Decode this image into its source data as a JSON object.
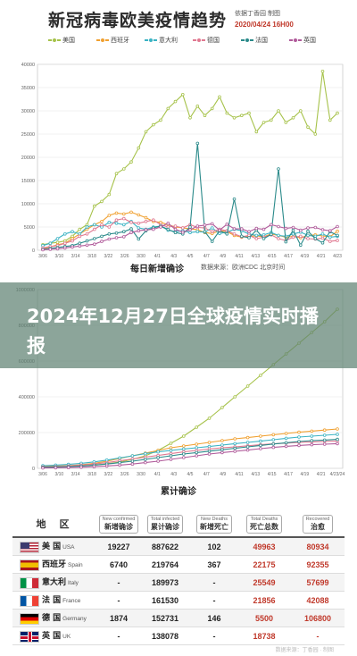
{
  "header": {
    "title": "新冠病毒欧美疫情趋势",
    "source": "依据丁香园 制图",
    "date": "2020/04/24 16H00"
  },
  "banner": {
    "text": "2024年12月27日全球疫情实时播报"
  },
  "colors": {
    "美国": "#a6c24a",
    "西班牙": "#f0a030",
    "意大利": "#3bb3c3",
    "德国": "#e07890",
    "法国": "#2a8a8a",
    "英国": "#b05a9a"
  },
  "chart_data": [
    {
      "type": "line",
      "title": "每日新增确诊",
      "subtitle": "数据来源：欧洲CDC 北京时间",
      "ylim": [
        0,
        40000
      ],
      "yticks": [
        "0",
        "5000",
        "10000",
        "15000",
        "20000",
        "25000",
        "30000",
        "35000",
        "40000"
      ],
      "xticks": [
        "3/06",
        "3/10",
        "3/14",
        "3/18",
        "3/22",
        "3/26",
        "3/30",
        "4/1",
        "4/3",
        "4/5",
        "4/7",
        "4/9",
        "4/11",
        "4/13",
        "4/15",
        "4/17",
        "4/19",
        "4/21",
        "4/23"
      ],
      "series": [
        {
          "name": "美国",
          "values": [
            1200,
            1500,
            1700,
            2000,
            3000,
            4500,
            5500,
            9500,
            10500,
            12000,
            16500,
            17500,
            19000,
            22000,
            25500,
            27000,
            28000,
            30500,
            32000,
            33500,
            28500,
            31000,
            29000,
            30500,
            33000,
            29500,
            28500,
            29000,
            29500,
            25500,
            27500,
            28000,
            30000,
            27500,
            28500,
            30000,
            26500,
            25000,
            38500,
            28000,
            29500
          ]
        },
        {
          "name": "西班牙",
          "values": [
            300,
            700,
            1200,
            1500,
            2500,
            3500,
            4500,
            5500,
            6200,
            7500,
            8000,
            7800,
            8200,
            7600,
            7000,
            6200,
            6000,
            5500,
            5000,
            4800,
            4600,
            4400,
            3800,
            3600,
            4200,
            4000,
            3200,
            2800,
            3000,
            3100,
            2900,
            3500,
            3200,
            2800,
            3000,
            2700,
            3200,
            3300,
            3100,
            2900,
            4100
          ]
        },
        {
          "name": "意大利",
          "values": [
            1000,
            1500,
            2500,
            3500,
            4000,
            3500,
            5000,
            5500,
            5000,
            6000,
            5800,
            5500,
            6200,
            4800,
            4500,
            5000,
            5200,
            4300,
            4000,
            4200,
            3800,
            4000,
            3900,
            4800,
            3600,
            3900,
            4500,
            4200,
            3500,
            3200,
            3300,
            3800,
            3200,
            3000,
            3500,
            3900,
            3200,
            3000,
            3500,
            2800,
            3000
          ]
        },
        {
          "name": "德国",
          "values": [
            500,
            800,
            1000,
            1500,
            2000,
            3000,
            3500,
            4500,
            5500,
            5000,
            6500,
            6800,
            6000,
            5800,
            6200,
            6500,
            5500,
            5000,
            5200,
            4800,
            5500,
            4900,
            4800,
            4000,
            4500,
            4200,
            3500,
            2900,
            3200,
            2500,
            2800,
            3300,
            2500,
            2100,
            2800,
            3000,
            2500,
            2400,
            2600,
            1900,
            2100
          ]
        },
        {
          "name": "法国",
          "values": [
            200,
            400,
            600,
            800,
            1000,
            1500,
            2000,
            2500,
            3000,
            3500,
            3700,
            4000,
            4600,
            2400,
            4200,
            4800,
            5200,
            4500,
            3800,
            3500,
            5000,
            23000,
            4000,
            1900,
            4200,
            3500,
            11000,
            3000,
            2700,
            4300,
            2500,
            3400,
            17500,
            1800,
            4300,
            1100,
            4100,
            2500,
            1600,
            4000,
            3200
          ]
        },
        {
          "name": "英国",
          "values": [
            100,
            200,
            300,
            500,
            700,
            900,
            1100,
            1300,
            1900,
            2400,
            2700,
            2900,
            3800,
            4200,
            4400,
            4500,
            5000,
            5800,
            4500,
            3900,
            4400,
            5200,
            5400,
            5700,
            4300,
            5600,
            4600,
            4600,
            4000,
            4700,
            4500,
            5500,
            5100,
            4700,
            4900,
            4300,
            4800,
            4900,
            4400,
            4200,
            5100
          ]
        }
      ]
    },
    {
      "type": "line",
      "title": "累计确诊",
      "ylim": [
        0,
        1000000
      ],
      "yticks": [
        "0",
        "200000",
        "400000",
        "600000",
        "800000",
        "1000000"
      ],
      "xticks": [
        "3/06",
        "3/10",
        "3/14",
        "3/18",
        "3/22",
        "3/26",
        "3/30",
        "4/1",
        "4/3",
        "4/5",
        "4/7",
        "4/9",
        "4/11",
        "4/13",
        "4/15",
        "4/17",
        "4/19",
        "4/21",
        "4/23/24"
      ],
      "series": [
        {
          "name": "美国",
          "values": [
            10000,
            11000,
            12000,
            14000,
            18000,
            25000,
            35000,
            50000,
            70000,
            100000,
            140000,
            180000,
            230000,
            280000,
            340000,
            400000,
            460000,
            520000,
            580000,
            640000,
            700000,
            760000,
            820000,
            890000
          ]
        },
        {
          "name": "西班牙",
          "values": [
            10000,
            12000,
            15000,
            20000,
            28000,
            40000,
            55000,
            70000,
            85000,
            100000,
            115000,
            125000,
            135000,
            145000,
            155000,
            165000,
            172000,
            180000,
            188000,
            195000,
            202000,
            208000,
            214000,
            220000
          ]
        },
        {
          "name": "意大利",
          "values": [
            15000,
            18000,
            22000,
            28000,
            36000,
            46000,
            58000,
            70000,
            82000,
            92000,
            100000,
            108000,
            115000,
            122000,
            130000,
            138000,
            145000,
            152000,
            160000,
            168000,
            175000,
            180000,
            185000,
            190000
          ]
        },
        {
          "name": "德国",
          "values": [
            8000,
            10000,
            13000,
            18000,
            24000,
            32000,
            42000,
            52000,
            62000,
            72000,
            82000,
            92000,
            100000,
            108000,
            115000,
            120000,
            126000,
            132000,
            137000,
            141000,
            145000,
            148000,
            150000,
            153000
          ]
        },
        {
          "name": "法国",
          "values": [
            6000,
            8000,
            10000,
            13000,
            18000,
            24000,
            32000,
            40000,
            50000,
            60000,
            70000,
            80000,
            88000,
            96000,
            104000,
            112000,
            120000,
            128000,
            136000,
            143000,
            150000,
            155000,
            158000,
            162000
          ]
        },
        {
          "name": "英国",
          "values": [
            2000,
            3000,
            4000,
            6000,
            9000,
            13000,
            18000,
            24000,
            32000,
            40000,
            50000,
            60000,
            70000,
            80000,
            88000,
            95000,
            102000,
            110000,
            117000,
            123000,
            128000,
            132000,
            135000,
            138000
          ]
        }
      ]
    }
  ],
  "table": {
    "headers": {
      "area": "地 区",
      "new_confirmed_en": "New confirmed",
      "new_confirmed_cn": "新增确诊",
      "total_infected_en": "Total infected",
      "total_infected_cn": "累计确诊",
      "new_deaths_en": "New Deaths",
      "new_deaths_cn": "新增死亡",
      "total_deaths_en": "Total Deaths",
      "total_deaths_cn": "死亡总数",
      "recovered_en": "Recovered",
      "recovered_cn": "治愈"
    },
    "rows": [
      {
        "cn": "美 国",
        "en": "USA",
        "flag": "us",
        "new_confirmed": "19227",
        "total": "887622",
        "new_deaths": "102",
        "total_deaths": "49963",
        "recovered": "80934"
      },
      {
        "cn": "西班牙",
        "en": "Spain",
        "flag": "es",
        "new_confirmed": "6740",
        "total": "219764",
        "new_deaths": "367",
        "total_deaths": "22175",
        "recovered": "92355"
      },
      {
        "cn": "意大利",
        "en": "Italy",
        "flag": "it",
        "new_confirmed": "-",
        "total": "189973",
        "new_deaths": "-",
        "total_deaths": "25549",
        "recovered": "57699"
      },
      {
        "cn": "法 国",
        "en": "France",
        "flag": "fr",
        "new_confirmed": "-",
        "total": "161530",
        "new_deaths": "-",
        "total_deaths": "21856",
        "recovered": "42088"
      },
      {
        "cn": "德 国",
        "en": "Germany",
        "flag": "de",
        "new_confirmed": "1874",
        "total": "152731",
        "new_deaths": "146",
        "total_deaths": "5500",
        "recovered": "106800"
      },
      {
        "cn": "英 国",
        "en": "UK",
        "flag": "uk",
        "new_confirmed": "-",
        "total": "138078",
        "new_deaths": "-",
        "total_deaths": "18738",
        "recovered": "-"
      }
    ]
  },
  "footer": {
    "text": "数据来源：丁香园 · 制图"
  }
}
